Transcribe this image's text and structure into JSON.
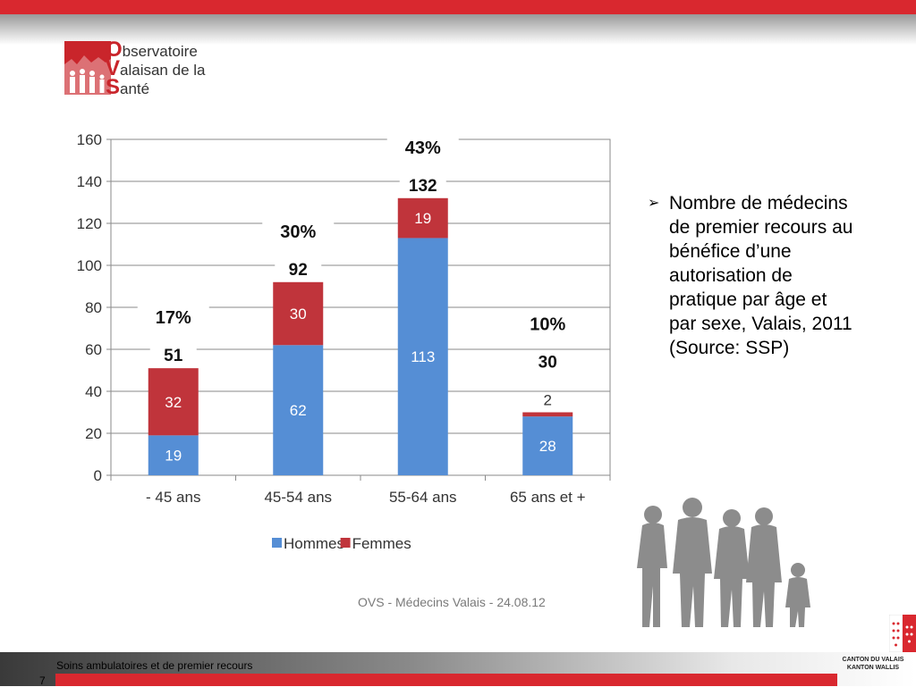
{
  "logo": {
    "line1_cap": "O",
    "line1": "bservatoire",
    "line2_cap": "V",
    "line2": "alaisan de la",
    "line3_cap": "S",
    "line3": "anté"
  },
  "chart_data": {
    "type": "bar",
    "stacked": true,
    "categories": [
      "- 45 ans",
      "45-54 ans",
      "55-64 ans",
      "65 ans et +"
    ],
    "series": [
      {
        "name": "Hommes",
        "values": [
          19,
          62,
          113,
          28
        ],
        "color": "#558ed5"
      },
      {
        "name": "Femmes",
        "values": [
          32,
          30,
          19,
          2
        ],
        "color": "#c0343b"
      }
    ],
    "totals": [
      "51",
      "92",
      "132",
      "30"
    ],
    "percentages": [
      "17%",
      "30%",
      "43%",
      "10%"
    ],
    "ylim": [
      0,
      160
    ],
    "yticks": [
      0,
      20,
      40,
      60,
      80,
      100,
      120,
      140,
      160
    ],
    "grid": true,
    "legend_position": "bottom"
  },
  "source_note": "OVS - Médecins Valais - 24.08.12",
  "bullet": {
    "marker": "➢",
    "lines": [
      "Nombre de médecins",
      "de premier recours au",
      "bénéfice d’une",
      "autorisation de",
      "pratique par âge et",
      "par sexe, Valais, 2011",
      "(Source: SSP)"
    ]
  },
  "footer": {
    "label": "Soins ambulatoires et de premier recours",
    "page_number": "7",
    "canton_line1": "CANTON DU VALAIS",
    "canton_line2": "KANTON WALLIS"
  },
  "colors": {
    "brand_red": "#d9282f",
    "hommes": "#558ed5",
    "femmes": "#c0343b"
  }
}
